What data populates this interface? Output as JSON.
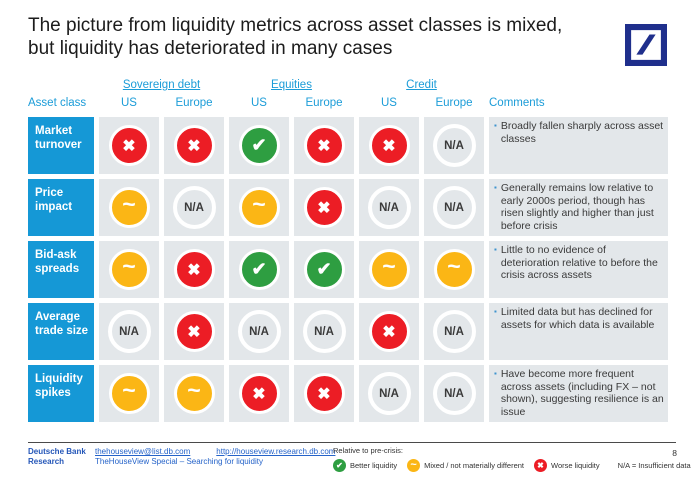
{
  "header": {
    "title_line1": "The picture from liquidity metrics across asset classes is mixed,",
    "title_line2": "but liquidity has deteriorated in many cases"
  },
  "table": {
    "group_headers": [
      "Sovereign debt",
      "Equities",
      "Credit"
    ],
    "columns": {
      "asset_class": "Asset class",
      "us": "US",
      "europe": "Europe",
      "comments": "Comments"
    },
    "rows": [
      {
        "label": "Market turnover",
        "cells": [
          "worse",
          "worse",
          "better",
          "worse",
          "worse",
          "na"
        ],
        "comment": "Broadly fallen sharply across asset classes"
      },
      {
        "label": "Price impact",
        "cells": [
          "mixed",
          "na",
          "mixed",
          "worse",
          "na",
          "na"
        ],
        "comment": "Generally remains low relative to early 2000s period, though has risen slightly and higher than just before crisis"
      },
      {
        "label": "Bid-ask spreads",
        "cells": [
          "mixed",
          "worse",
          "better",
          "better",
          "mixed",
          "mixed"
        ],
        "comment": "Little to no evidence of deterioration relative to before the crisis across assets"
      },
      {
        "label": "Average trade size",
        "cells": [
          "na",
          "worse",
          "na",
          "na",
          "worse",
          "na"
        ],
        "comment": "Limited data but has declined for assets for which data is available"
      },
      {
        "label": "Liquidity spikes",
        "cells": [
          "mixed",
          "mixed",
          "worse",
          "worse",
          "na",
          "na"
        ],
        "comment": "Have become more frequent across assets (including FX – not shown), suggesting resilience is an issue"
      }
    ]
  },
  "icons": {
    "worse": "✖",
    "better": "✔",
    "mixed": "~",
    "na": "N/A"
  },
  "footer": {
    "brand_line1": "Deutsche Bank",
    "brand_line2": "Research",
    "email": "thehouseview@list.db.com",
    "url": "http://houseview.research.db.com",
    "special": "TheHouseView Special – Searching for liquidity",
    "legend_title": "Relative to pre-crisis:",
    "legend": [
      {
        "type": "better",
        "label": "Better liquidity"
      },
      {
        "type": "mixed",
        "label": "Mixed / not materially different"
      },
      {
        "type": "worse",
        "label": "Worse liquidity"
      }
    ],
    "na_note": "N/A  = Insufficient data",
    "page_number": "8"
  },
  "colors": {
    "accent_blue": "#1598D6",
    "header_text_blue": "#1B9CD8",
    "worse_red": "#EC1D25",
    "better_green": "#2E9E41",
    "mixed_amber": "#FBB615",
    "cell_gray": "#E3E7EA",
    "brand_navy": "#1F2F8C",
    "link_blue": "#2563C9"
  }
}
